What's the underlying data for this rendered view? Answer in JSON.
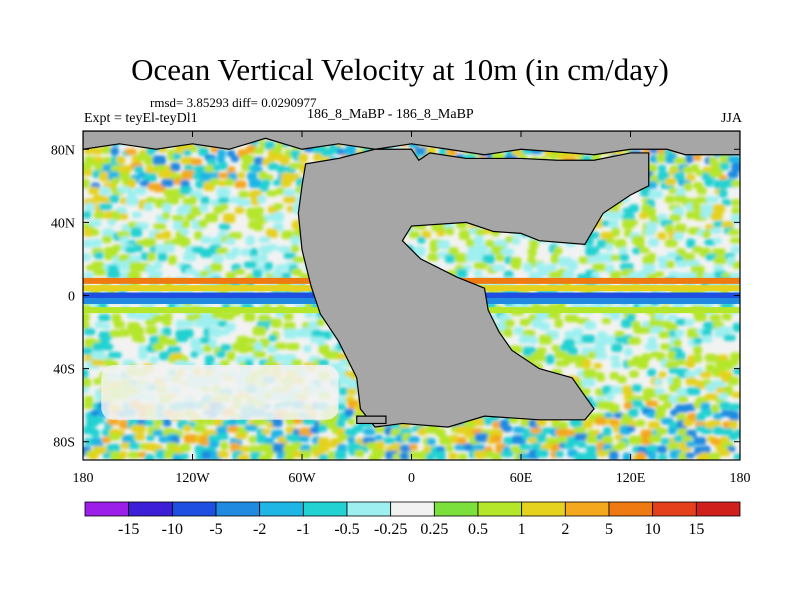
{
  "chart_data": {
    "type": "heatmap",
    "title": "Ocean Vertical Velocity at 10m (in cm/day)",
    "stats_text": "rmsd= 3.85293 diff= 0.0290977",
    "experiment": "Expt = teyEl-teyDl1",
    "center_label": "186_8_MaBP - 186_8_MaBP",
    "season": "JJA",
    "xlabel": "",
    "ylabel": "",
    "xlim": [
      -180,
      180
    ],
    "ylim": [
      -90,
      90
    ],
    "x_ticks": [
      {
        "value": -180,
        "label": "180"
      },
      {
        "value": -120,
        "label": "120W"
      },
      {
        "value": -60,
        "label": "60W"
      },
      {
        "value": 0,
        "label": "0"
      },
      {
        "value": 60,
        "label": "60E"
      },
      {
        "value": 120,
        "label": "120E"
      },
      {
        "value": 180,
        "label": "180"
      }
    ],
    "y_ticks": [
      {
        "value": 80,
        "label": "80N"
      },
      {
        "value": 40,
        "label": "40N"
      },
      {
        "value": 0,
        "label": "0"
      },
      {
        "value": -40,
        "label": "40S"
      },
      {
        "value": -80,
        "label": "80S"
      }
    ],
    "colorbar": {
      "levels": [
        "-15",
        "-10",
        "-5",
        "-2",
        "-1",
        "-0.5",
        "-0.25",
        "0.25",
        "0.5",
        "1",
        "2",
        "5",
        "10",
        "15"
      ],
      "colors": [
        "#9b1fe8",
        "#3c1fd6",
        "#1f4fe0",
        "#1f8ae0",
        "#1fb6e6",
        "#22d2d2",
        "#9ef0f0",
        "#f2f2f2",
        "#7ce03c",
        "#b4e62a",
        "#e4d21e",
        "#f4a81e",
        "#f07a12",
        "#e4401c",
        "#d0201c"
      ]
    },
    "land_color": "#a6a6a6",
    "equatorial_band": [
      {
        "lat": 8,
        "value": "5"
      },
      {
        "lat": 4,
        "value": "1"
      },
      {
        "lat": 0,
        "value": "-10"
      },
      {
        "lat": -3,
        "value": "-5"
      },
      {
        "lat": -8,
        "value": "0.5"
      }
    ]
  }
}
